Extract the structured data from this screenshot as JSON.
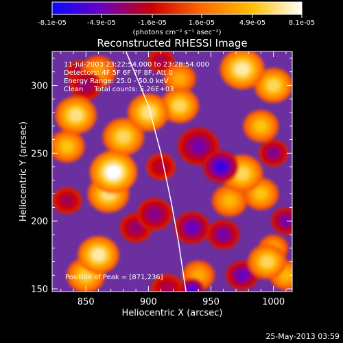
{
  "chart_data": {
    "type": "heatmap",
    "title": "Reconstructed RHESSI Image",
    "xlabel": "Heliocentric X (arcsec)",
    "ylabel": "Heliocentric Y (arcsec)",
    "xlim": [
      823,
      1015
    ],
    "ylim": [
      148,
      325
    ],
    "x_ticks": [
      850,
      900,
      950,
      1000
    ],
    "y_ticks": [
      150,
      200,
      250,
      300
    ],
    "colorbar": {
      "range": [
        -8.1e-05,
        8.1e-05
      ],
      "tick_labels": [
        "-8.1e-05",
        "-4.9e-05",
        "-1.6e-05",
        "1.6e-05",
        "4.9e-05",
        "8.1e-05"
      ],
      "tick_values": [
        -8.1e-05,
        -4.9e-05,
        -1.6e-05,
        1.6e-05,
        4.9e-05,
        8.1e-05
      ],
      "units_label": "(photons cm⁻² s⁻¹ asec⁻²)",
      "colors": [
        "#0a0aff",
        "#6b00c0",
        "#cc0000",
        "#ff6a00",
        "#ffc000",
        "#ffffff"
      ]
    },
    "annotations": [
      "11-Jul-2003 23:22:54.000 to 23:28:54.000",
      "Detectors: 4F 5F 6F 7F 8F, Att 0",
      "Energy Range: 25.0 - 50.0 keV",
      "Clean     Total counts: 5.26E+03"
    ],
    "peak_label": "Position of Peak = [871,236]",
    "limb": [
      [
        882,
        325
      ],
      [
        900,
        285
      ],
      [
        910,
        250
      ],
      [
        918,
        215
      ],
      [
        924,
        185
      ],
      [
        930,
        148
      ]
    ],
    "blobs": [
      {
        "x": 872,
        "y": 236,
        "v": 8.1e-05,
        "r": 16
      },
      {
        "x": 868,
        "y": 220,
        "v": 6.5e-05,
        "r": 14
      },
      {
        "x": 880,
        "y": 262,
        "v": 6e-05,
        "r": 14
      },
      {
        "x": 900,
        "y": 280,
        "v": 6.5e-05,
        "r": 14
      },
      {
        "x": 925,
        "y": 285,
        "v": 6e-05,
        "r": 13
      },
      {
        "x": 975,
        "y": 312,
        "v": 7e-05,
        "r": 15
      },
      {
        "x": 1000,
        "y": 300,
        "v": 6e-05,
        "r": 13
      },
      {
        "x": 990,
        "y": 270,
        "v": 5e-05,
        "r": 12
      },
      {
        "x": 842,
        "y": 278,
        "v": 6.5e-05,
        "r": 14
      },
      {
        "x": 835,
        "y": 255,
        "v": 5e-05,
        "r": 12
      },
      {
        "x": 860,
        "y": 175,
        "v": 7e-05,
        "r": 14
      },
      {
        "x": 850,
        "y": 160,
        "v": 5.5e-05,
        "r": 13
      },
      {
        "x": 975,
        "y": 235,
        "v": 6e-05,
        "r": 14
      },
      {
        "x": 990,
        "y": 220,
        "v": 5e-05,
        "r": 12
      },
      {
        "x": 965,
        "y": 215,
        "v": 4.5e-05,
        "r": 12
      },
      {
        "x": 995,
        "y": 170,
        "v": 6e-05,
        "r": 13
      },
      {
        "x": 1010,
        "y": 160,
        "v": 4.5e-05,
        "r": 11
      },
      {
        "x": 1000,
        "y": 180,
        "v": 4e-05,
        "r": 10
      },
      {
        "x": 940,
        "y": 160,
        "v": 4e-05,
        "r": 11
      },
      {
        "x": 925,
        "y": 305,
        "v": 4e-05,
        "r": 11
      },
      {
        "x": 860,
        "y": 310,
        "v": 3.5e-05,
        "r": 12
      },
      {
        "x": 940,
        "y": 255,
        "v": -4.5e-05,
        "r": 14
      },
      {
        "x": 958,
        "y": 240,
        "v": -6.5e-05,
        "r": 12
      },
      {
        "x": 935,
        "y": 195,
        "v": -5e-05,
        "r": 12
      },
      {
        "x": 905,
        "y": 205,
        "v": -4e-05,
        "r": 12
      },
      {
        "x": 890,
        "y": 195,
        "v": -3.5e-05,
        "r": 11
      },
      {
        "x": 960,
        "y": 190,
        "v": -4.5e-05,
        "r": 11
      },
      {
        "x": 975,
        "y": 160,
        "v": -5e-05,
        "r": 11
      },
      {
        "x": 1000,
        "y": 250,
        "v": -4e-05,
        "r": 10
      },
      {
        "x": 1010,
        "y": 200,
        "v": -4.5e-05,
        "r": 10
      },
      {
        "x": 910,
        "y": 240,
        "v": -2.5e-05,
        "r": 10
      },
      {
        "x": 850,
        "y": 300,
        "v": -3.5e-05,
        "r": 11
      },
      {
        "x": 835,
        "y": 215,
        "v": -3e-05,
        "r": 10
      },
      {
        "x": 915,
        "y": 150,
        "v": -3e-05,
        "r": 11
      },
      {
        "x": 935,
        "y": 150,
        "v": -6e-05,
        "r": 8
      },
      {
        "x": 845,
        "y": 310,
        "v": -3e-05,
        "r": 9
      },
      {
        "x": 910,
        "y": 318,
        "v": -3e-05,
        "r": 9
      }
    ]
  },
  "footer": {
    "timestamp": "25-May-2013 03:59"
  }
}
